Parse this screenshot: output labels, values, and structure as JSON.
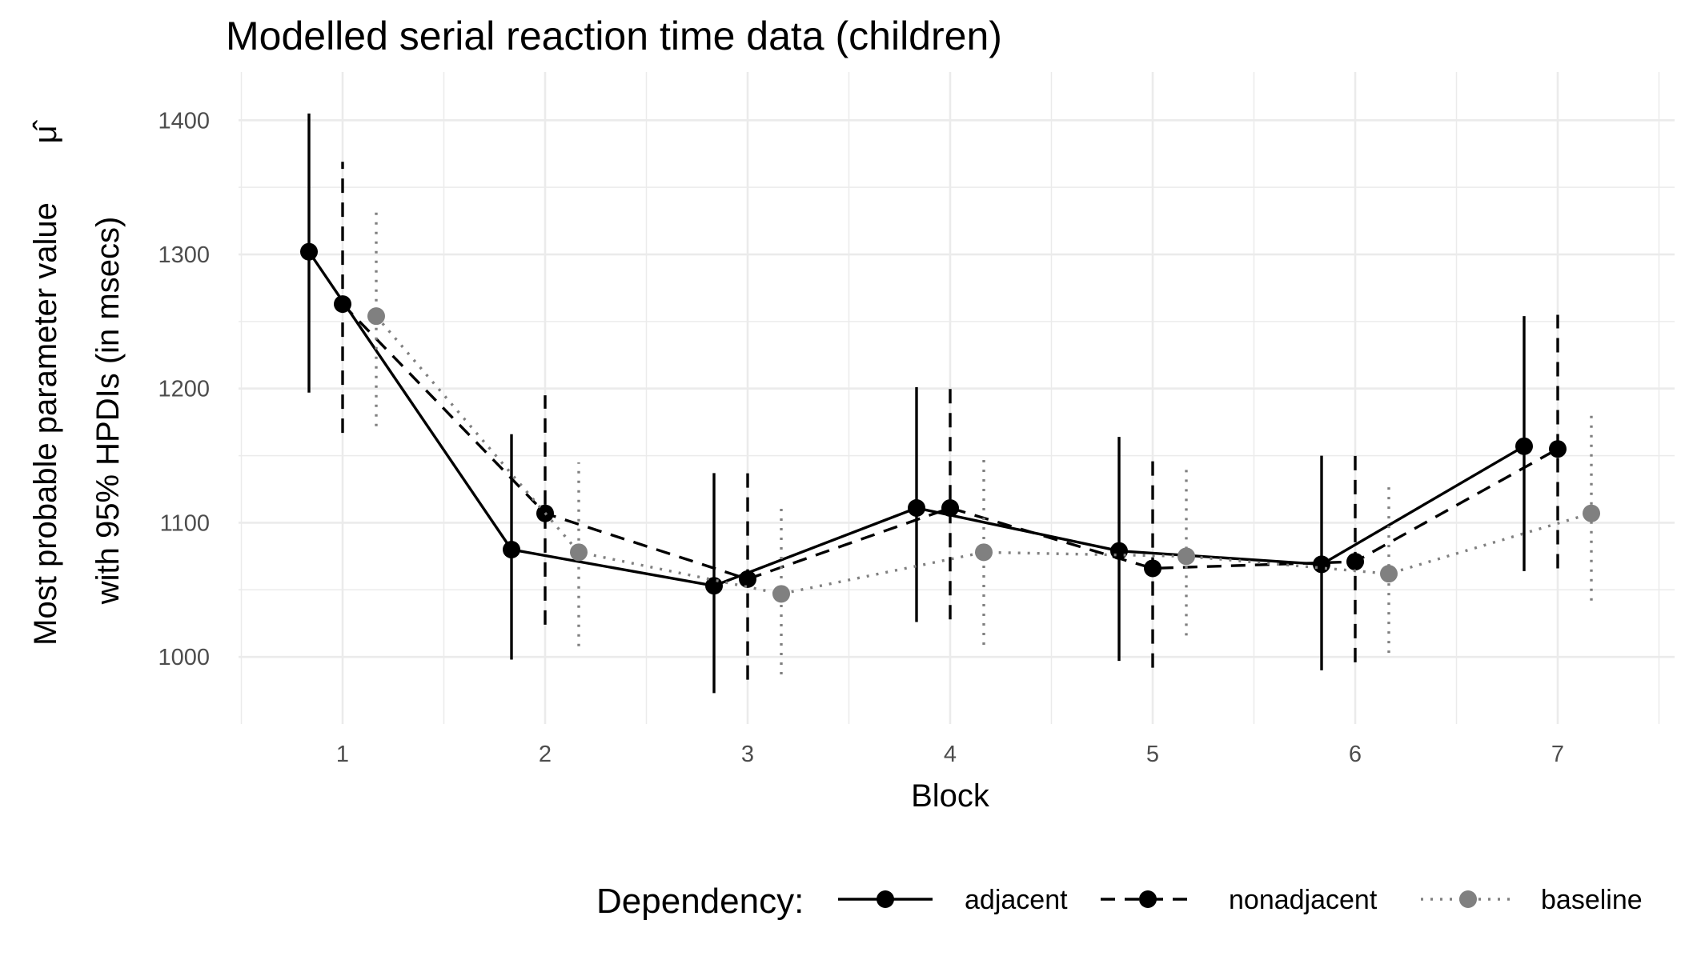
{
  "chart_data": {
    "type": "line",
    "title": "Modelled serial reaction time data (children)",
    "xlabel": "Block",
    "ylabel_line1": "Most probable parameter value",
    "ylabel_symbol": "μ̂",
    "ylabel_line2": "with 95% HPDIs (in msecs)",
    "categories": [
      "1",
      "2",
      "3",
      "4",
      "5",
      "6",
      "7"
    ],
    "ylim": [
      950,
      1430
    ],
    "yticks": [
      1000,
      1100,
      1200,
      1300,
      1400
    ],
    "ytick_labels": [
      "1000",
      "1100",
      "1200",
      "1300",
      "1400"
    ],
    "grid": true,
    "legend": {
      "title": "Dependency:",
      "placement": "bottom"
    },
    "series": [
      {
        "name": "adjacent",
        "color": "#000000",
        "linestyle": "solid",
        "dodge": -1,
        "values": [
          1302,
          1080,
          1053,
          1111,
          1079,
          1069,
          1157
        ],
        "lower": [
          1197,
          998,
          973,
          1026,
          997,
          990,
          1064
        ],
        "upper": [
          1405,
          1166,
          1137,
          1201,
          1164,
          1150,
          1254
        ]
      },
      {
        "name": "nonadjacent",
        "color": "#000000",
        "linestyle": "dashed",
        "dodge": 0,
        "values": [
          1263,
          1107,
          1058,
          1111,
          1066,
          1071,
          1155
        ],
        "lower": [
          1167,
          1024,
          983,
          1028,
          992,
          996,
          1066
        ],
        "upper": [
          1369,
          1195,
          1140,
          1200,
          1150,
          1152,
          1255
        ]
      },
      {
        "name": "baseline",
        "color": "#808080",
        "linestyle": "dotted",
        "dodge": 1,
        "values": [
          1254,
          1078,
          1047,
          1078,
          1075,
          1062,
          1107
        ],
        "lower": [
          1172,
          1008,
          987,
          1009,
          1016,
          1003,
          1042
        ],
        "upper": [
          1333,
          1145,
          1115,
          1147,
          1144,
          1130,
          1180
        ]
      }
    ]
  }
}
